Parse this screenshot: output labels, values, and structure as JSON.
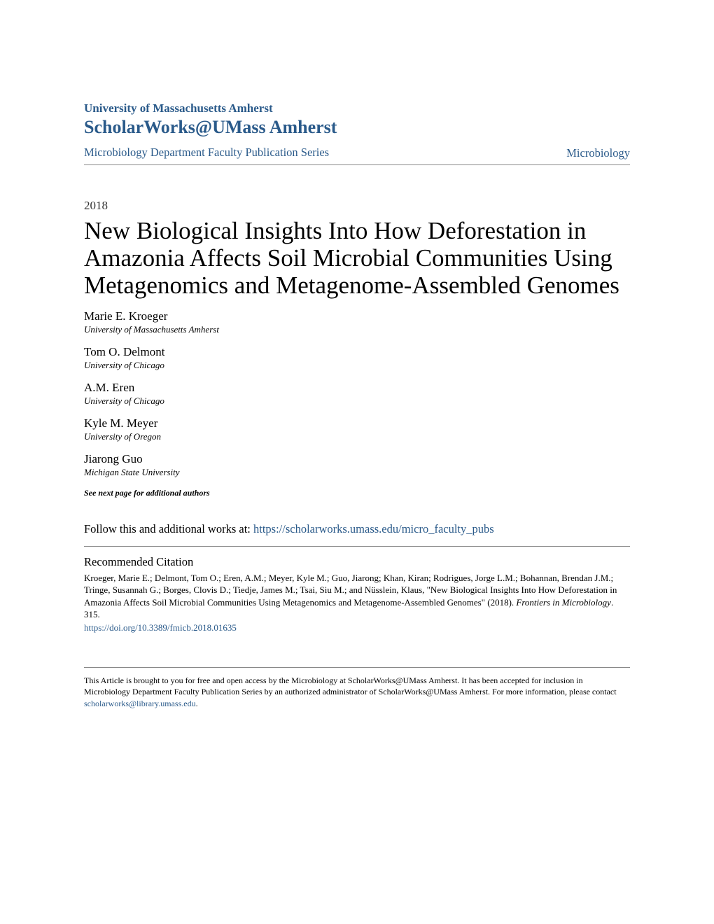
{
  "header": {
    "university": "University of Massachusetts Amherst",
    "scholarworks": "ScholarWorks@UMass Amherst",
    "series_link": "Microbiology Department Faculty Publication Series",
    "dept_link": "Microbiology",
    "link_color": "#2a5a8a"
  },
  "year": "2018",
  "title": "New Biological Insights Into How Deforestation in Amazonia Affects Soil Microbial Communities Using Metagenomics and Metagenome-Assembled Genomes",
  "authors": [
    {
      "name": "Marie E. Kroeger",
      "affiliation": "University of Massachusetts Amherst"
    },
    {
      "name": "Tom O. Delmont",
      "affiliation": "University of Chicago"
    },
    {
      "name": "A.M. Eren",
      "affiliation": "University of Chicago"
    },
    {
      "name": "Kyle M. Meyer",
      "affiliation": "University of Oregon"
    },
    {
      "name": "Jiarong Guo",
      "affiliation": "Michigan State University"
    }
  ],
  "see_next": "See next page for additional authors",
  "follow": {
    "prefix": "Follow this and additional works at: ",
    "url": "https://scholarworks.umass.edu/micro_faculty_pubs"
  },
  "citation": {
    "heading": "Recommended Citation",
    "text_pre_journal": "Kroeger, Marie E.; Delmont, Tom O.; Eren, A.M.; Meyer, Kyle M.; Guo, Jiarong; Khan, Kiran; Rodrigues, Jorge L.M.; Bohannan, Brendan J.M.; Tringe, Susannah G.; Borges, Clovis D.; Tiedje, James M.; Tsai, Siu M.; and Nüsslein, Klaus, \"New Biological Insights Into How Deforestation in Amazonia Affects Soil Microbial Communities Using Metagenomics and Metagenome-Assembled Genomes\" (2018). ",
    "journal": "Frontiers in Microbiology",
    "text_post_journal": ". 315.",
    "doi": "https://doi.org/10.3389/fmicb.2018.01635"
  },
  "footer": {
    "text_pre_email": "This Article is brought to you for free and open access by the Microbiology at ScholarWorks@UMass Amherst. It has been accepted for inclusion in Microbiology Department Faculty Publication Series by an authorized administrator of ScholarWorks@UMass Amherst. For more information, please contact ",
    "email": "scholarworks@library.umass.edu",
    "text_post_email": "."
  },
  "colors": {
    "link": "#2a5a8a",
    "text": "#000000",
    "rule": "#888888",
    "background": "#ffffff"
  },
  "fonts": {
    "body_family": "Georgia, Times New Roman, serif",
    "title_size_pt": 26,
    "body_size_pt": 12,
    "author_name_size_pt": 13,
    "affil_size_pt": 10,
    "footer_size_pt": 9
  }
}
